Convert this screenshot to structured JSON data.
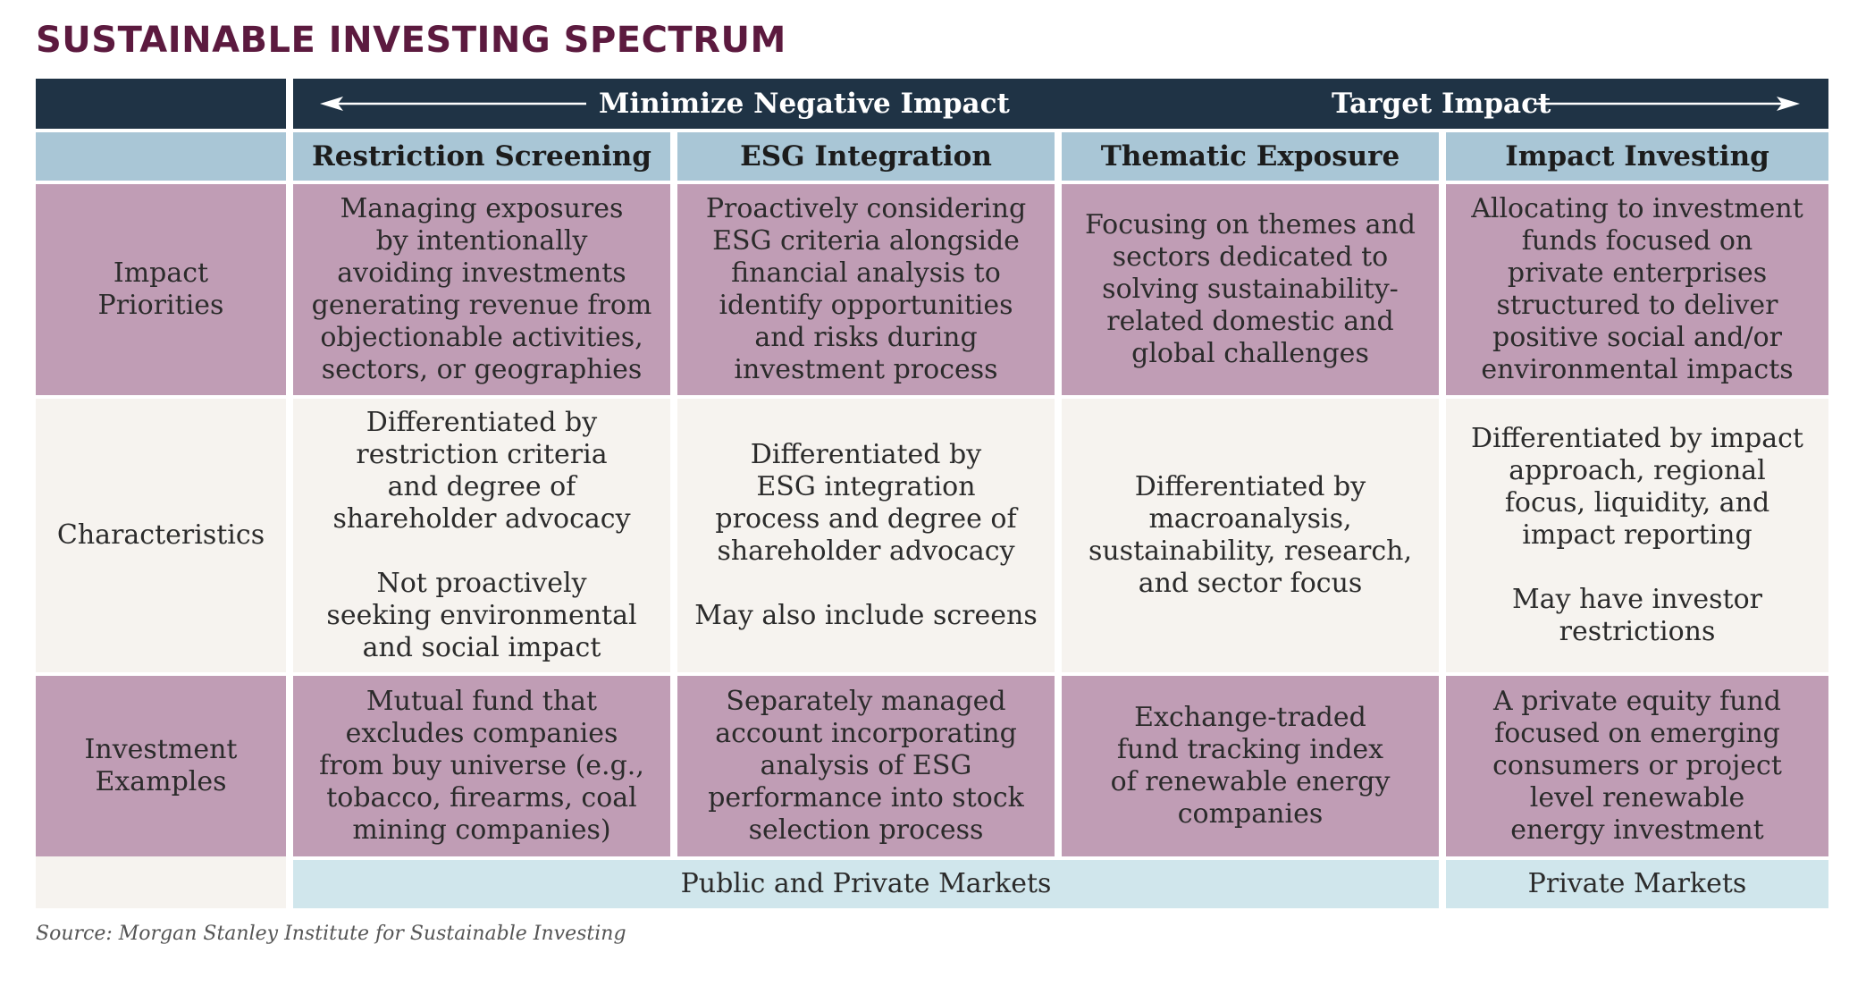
{
  "title": "SUSTAINABLE INVESTING SPECTRUM",
  "banner": {
    "left_label": "Minimize Negative Impact",
    "right_label": "Target Impact"
  },
  "columns": [
    "Restriction Screening",
    "ESG Integration",
    "Thematic Exposure",
    "Impact Investing"
  ],
  "rows": {
    "impact_priorities": {
      "label": "Impact\nPriorities",
      "cells": [
        "Managing exposures\nby intentionally\navoiding investments\ngenerating revenue from\nobjectionable activities,\nsectors, or geographies",
        "Proactively considering\nESG criteria alongside\nfinancial analysis to\nidentify opportunities\nand risks during\ninvestment process",
        "Focusing on themes and\nsectors dedicated to\nsolving sustainability-\nrelated domestic and\nglobal challenges",
        "Allocating to investment\nfunds focused on\nprivate enterprises\nstructured to deliver\npositive social and/or\nenvironmental impacts"
      ]
    },
    "characteristics": {
      "label": "Characteristics",
      "cells": [
        "Differentiated by\nrestriction criteria\nand degree of\nshareholder advocacy\n\nNot proactively\nseeking environmental\nand social impact",
        "Differentiated by\nESG integration\nprocess and degree of\nshareholder advocacy\n\nMay also include screens",
        "Differentiated by\nmacroanalysis,\nsustainability, research,\nand sector focus",
        "Differentiated by impact\napproach, regional\nfocus, liquidity, and\nimpact reporting\n\nMay have investor\nrestrictions"
      ]
    },
    "investment_examples": {
      "label": "Investment\nExamples",
      "cells": [
        "Mutual fund that\nexcludes companies\nfrom buy universe (e.g.,\ntobacco, firearms, coal\nmining companies)",
        "Separately managed\naccount incorporating\nanalysis of ESG\nperformance into stock\nselection process",
        "Exchange-traded\nfund tracking index\nof renewable energy\ncompanies",
        "A private equity fund\nfocused on emerging\nconsumers or project\nlevel renewable\nenergy investment"
      ]
    }
  },
  "markets": {
    "public_private": "Public and Private Markets",
    "private": "Private Markets"
  },
  "source": "Source: Morgan Stanley Institute for Sustainable Investing",
  "colors": {
    "title": "#5c1a3f",
    "navy": "#1f3345",
    "header_blue": "#a9c6d6",
    "mauve": "#c09db5",
    "cream": "#f6f3ef",
    "pale_blue": "#d0e6ec"
  }
}
